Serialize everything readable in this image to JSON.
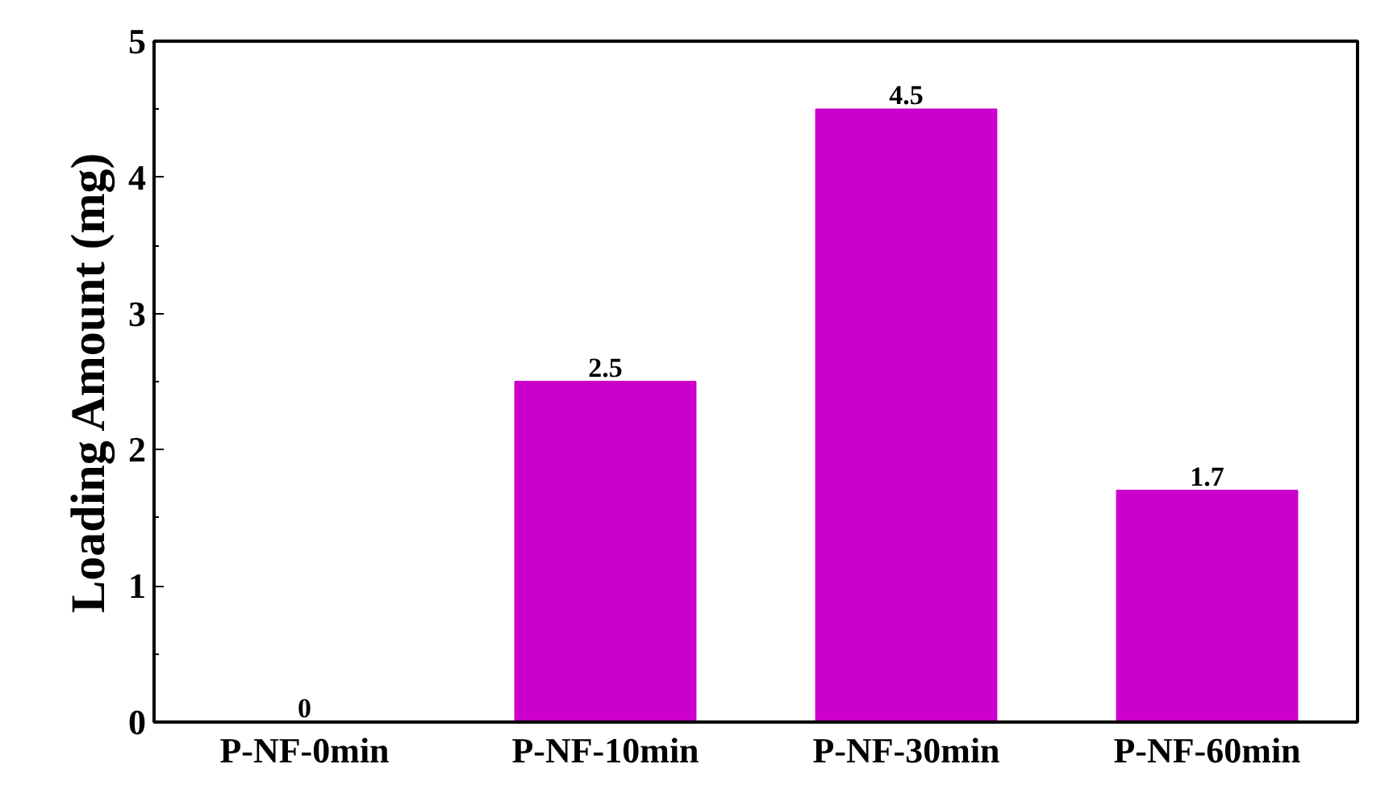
{
  "chart_data": {
    "type": "bar",
    "ylabel": "Loading Amount (mg)",
    "categories": [
      "P-NF-0min",
      "P-NF-10min",
      "P-NF-30min",
      "P-NF-60min"
    ],
    "values": [
      0,
      2.5,
      4.5,
      1.7
    ],
    "color": "#cc00cc",
    "ylim": [
      0,
      5
    ],
    "yticks": [
      0,
      1,
      2,
      3,
      4,
      5
    ],
    "data_labels": true,
    "grid": false
  }
}
